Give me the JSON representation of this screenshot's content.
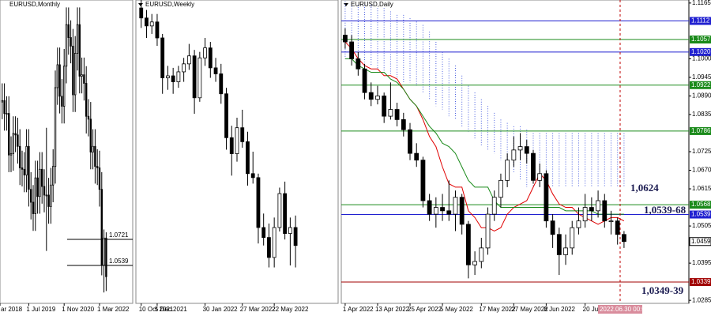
{
  "chart_data": [
    {
      "type": "candlestick",
      "title": "EURUSD,Monthly",
      "ylim": [
        1.0274,
        1.2392
      ],
      "xlim": [
        -1,
        59
      ],
      "xticks": [
        {
          "value": -1,
          "label": "ar 2018"
        },
        {
          "value": 12,
          "label": "1 Jul 2019"
        },
        {
          "value": 28,
          "label": "1 Nov 2020"
        },
        {
          "value": 44,
          "label": "1 Mar 2022"
        }
      ],
      "levels": [
        {
          "value": 1.0721,
          "label": "1.0721",
          "color": "#000000"
        },
        {
          "value": 1.0539,
          "label": "1.0539",
          "color": "#000000"
        }
      ],
      "candles": [
        [
          1.168,
          1.181,
          1.156,
          1.169
        ],
        [
          1.169,
          1.181,
          1.148,
          1.16
        ],
        [
          1.16,
          1.172,
          1.148,
          1.16
        ],
        [
          1.16,
          1.172,
          1.119,
          1.131
        ],
        [
          1.131,
          1.144,
          1.119,
          1.132
        ],
        [
          1.132,
          1.158,
          1.12,
          1.146
        ],
        [
          1.146,
          1.158,
          1.133,
          1.145
        ],
        [
          1.145,
          1.157,
          1.125,
          1.137
        ],
        [
          1.137,
          1.149,
          1.11,
          1.122
        ],
        [
          1.122,
          1.134,
          1.109,
          1.121
        ],
        [
          1.121,
          1.133,
          1.105,
          1.117
        ],
        [
          1.117,
          1.149,
          1.105,
          1.137
        ],
        [
          1.137,
          1.149,
          1.095,
          1.107
        ],
        [
          1.107,
          1.119,
          1.086,
          1.098
        ],
        [
          1.098,
          1.11,
          1.078,
          1.09
        ],
        [
          1.09,
          1.127,
          1.078,
          1.115
        ],
        [
          1.115,
          1.127,
          1.09,
          1.102
        ],
        [
          1.102,
          1.133,
          1.09,
          1.121
        ],
        [
          1.121,
          1.133,
          1.097,
          1.109
        ],
        [
          1.109,
          1.121,
          1.091,
          1.103
        ],
        [
          1.103,
          1.15,
          1.064,
          1.103
        ],
        [
          1.103,
          1.115,
          1.083,
          1.095
        ],
        [
          1.095,
          1.122,
          1.083,
          1.11
        ],
        [
          1.11,
          1.135,
          1.098,
          1.123
        ],
        [
          1.123,
          1.19,
          1.111,
          1.178
        ],
        [
          1.178,
          1.206,
          1.166,
          1.194
        ],
        [
          1.194,
          1.206,
          1.16,
          1.172
        ],
        [
          1.172,
          1.184,
          1.153,
          1.165
        ],
        [
          1.165,
          1.205,
          1.153,
          1.193
        ],
        [
          1.193,
          1.234,
          1.181,
          1.222
        ],
        [
          1.222,
          1.234,
          1.201,
          1.213
        ],
        [
          1.213,
          1.225,
          1.195,
          1.207
        ],
        [
          1.207,
          1.219,
          1.161,
          1.173
        ],
        [
          1.173,
          1.214,
          1.161,
          1.202
        ],
        [
          1.202,
          1.234,
          1.19,
          1.222
        ],
        [
          1.222,
          1.234,
          1.174,
          1.186
        ],
        [
          1.186,
          1.199,
          1.174,
          1.187
        ],
        [
          1.187,
          1.199,
          1.169,
          1.181
        ],
        [
          1.181,
          1.193,
          1.146,
          1.158
        ],
        [
          1.158,
          1.17,
          1.144,
          1.156
        ],
        [
          1.156,
          1.168,
          1.121,
          1.133
        ],
        [
          1.133,
          1.149,
          1.121,
          1.137
        ],
        [
          1.137,
          1.149,
          1.111,
          1.123
        ],
        [
          1.123,
          1.135,
          1.11,
          1.122
        ],
        [
          1.122,
          1.134,
          1.095,
          1.107
        ],
        [
          1.107,
          1.119,
          1.047,
          1.054
        ],
        [
          1.054,
          1.079,
          1.035,
          1.073
        ],
        [
          1.073,
          1.077,
          1.036,
          1.046
        ]
      ]
    },
    {
      "type": "candlestick",
      "title": "EURUSD,Weekly",
      "ylim": [
        1.017,
        1.169
      ],
      "xlim": [
        -1,
        37
      ],
      "xticks": [
        {
          "value": 0,
          "label": "10 Oct 2021"
        },
        {
          "value": 3,
          "label": "5 Dec 2021"
        },
        {
          "value": 12,
          "label": "30 Jan 2022"
        },
        {
          "value": 19,
          "label": "27 Mar 2022"
        },
        {
          "value": 25,
          "label": "22 May 2022"
        }
      ],
      "candles": [
        [
          1.165,
          1.17,
          1.155,
          1.16
        ],
        [
          1.16,
          1.164,
          1.15,
          1.156
        ],
        [
          1.156,
          1.162,
          1.152,
          1.158
        ],
        [
          1.158,
          1.162,
          1.146,
          1.15
        ],
        [
          1.15,
          1.152,
          1.122,
          1.13
        ],
        [
          1.13,
          1.136,
          1.124,
          1.131
        ],
        [
          1.131,
          1.135,
          1.122,
          1.128
        ],
        [
          1.128,
          1.136,
          1.125,
          1.133
        ],
        [
          1.133,
          1.14,
          1.128,
          1.137
        ],
        [
          1.137,
          1.147,
          1.134,
          1.141
        ],
        [
          1.141,
          1.144,
          1.112,
          1.12
        ],
        [
          1.12,
          1.143,
          1.118,
          1.14
        ],
        [
          1.14,
          1.15,
          1.136,
          1.145
        ],
        [
          1.145,
          1.148,
          1.13,
          1.135
        ],
        [
          1.135,
          1.14,
          1.128,
          1.132
        ],
        [
          1.132,
          1.137,
          1.117,
          1.122
        ],
        [
          1.122,
          1.125,
          1.094,
          1.1
        ],
        [
          1.1,
          1.106,
          1.081,
          1.092
        ],
        [
          1.092,
          1.11,
          1.088,
          1.105
        ],
        [
          1.105,
          1.114,
          1.095,
          1.098
        ],
        [
          1.098,
          1.103,
          1.076,
          1.082
        ],
        [
          1.082,
          1.093,
          1.077,
          1.08
        ],
        [
          1.08,
          1.082,
          1.047,
          1.055
        ],
        [
          1.055,
          1.062,
          1.046,
          1.05
        ],
        [
          1.05,
          1.057,
          1.035,
          1.04
        ],
        [
          1.04,
          1.06,
          1.035,
          1.055
        ],
        [
          1.055,
          1.075,
          1.053,
          1.072
        ],
        [
          1.072,
          1.078,
          1.049,
          1.052
        ],
        [
          1.052,
          1.06,
          1.036,
          1.055
        ],
        [
          1.055,
          1.061,
          1.035,
          1.046
        ]
      ]
    },
    {
      "type": "candlestick",
      "title": "EURUSD,Daily",
      "ylim": [
        1.0276,
        1.1174
      ],
      "xlim": [
        -0.6,
        53
      ],
      "yticks": [
        1.1165,
        {
          "value": 1.1,
          "label": "1.1000"
        },
        1.0945,
        {
          "value": 1.089,
          "label": "1.0890"
        },
        1.0835,
        1.0725,
        {
          "value": 1.067,
          "label": "1.0670"
        },
        1.0615,
        1.0505,
        1.0395,
        1.0285
      ],
      "xticks": [
        {
          "value": 0,
          "label": "1 Apr 2022"
        },
        {
          "value": 5,
          "label": "13 Apr 2022"
        },
        {
          "value": 10,
          "label": "25 Apr 2022"
        },
        {
          "value": 15,
          "label": "5 May 2022"
        },
        {
          "value": 21,
          "label": "17 May 2022"
        },
        {
          "value": 26,
          "label": "27 May 2022"
        },
        {
          "value": 31,
          "label": "8 Jun 2022"
        },
        {
          "value": 37,
          "label": "20 Jun 2022"
        }
      ],
      "cursor": {
        "value": 42.4,
        "label": "2022.06.30 00:00"
      },
      "levels": [
        {
          "value": 1.1112,
          "label": "1.1112",
          "color": "#2020d0"
        },
        {
          "value": 1.1057,
          "label": "1.1057",
          "color": "#1a8a1a"
        },
        {
          "value": 1.102,
          "label": "1.1020",
          "color": "#2020d0"
        },
        {
          "value": 1.0922,
          "label": "1.0922",
          "color": "#1a8a1a"
        },
        {
          "value": 1.0786,
          "label": "1.0786",
          "color": "#1a8a1a"
        },
        {
          "value": 1.0568,
          "label": "1.0568",
          "color": "#1a8a1a"
        },
        {
          "value": 1.0539,
          "label": "1.0539",
          "color": "#2020d0"
        },
        {
          "value": 1.0339,
          "label": "1.0339",
          "color": "#a00000"
        }
      ],
      "price": {
        "value": 1.0459,
        "label": "1.0459"
      },
      "annotations": [
        "1,0624",
        "1,0539-68",
        "1,0349-39"
      ],
      "cloud": {
        "color": "#4a5fe0",
        "upper": [
          1.117,
          1.117,
          1.116,
          1.116,
          1.116,
          1.115,
          1.115,
          1.114,
          1.113,
          1.113,
          1.112,
          1.111,
          1.11,
          1.108,
          1.105,
          1.102,
          1.1,
          1.098,
          1.095,
          1.092,
          1.09,
          1.088,
          1.086,
          1.084,
          1.082,
          1.081,
          1.08,
          1.08,
          1.079,
          1.078,
          1.078,
          1.078,
          1.078,
          1.078,
          1.078,
          1.078,
          1.078,
          1.078,
          1.078,
          1.078,
          1.078,
          1.078,
          1.078,
          1.078
        ],
        "lower": [
          1.1,
          1.1,
          1.099,
          1.099,
          1.098,
          1.097,
          1.096,
          1.095,
          1.094,
          1.093,
          1.093,
          1.092,
          1.09,
          1.088,
          1.086,
          1.085,
          1.083,
          1.082,
          1.08,
          1.078,
          1.076,
          1.074,
          1.073,
          1.072,
          1.07,
          1.068,
          1.066,
          1.064,
          1.062,
          1.062,
          1.062,
          1.062,
          1.062,
          1.062,
          1.062,
          1.062,
          1.062,
          1.062,
          1.062,
          1.062,
          1.062,
          1.062,
          1.062,
          1.062
        ]
      },
      "lines": [
        {
          "color": "#e00000",
          "values": [
            1.105,
            1.103,
            1.1,
            1.098,
            1.097,
            1.097,
            1.095,
            1.095,
            1.094,
            1.091,
            1.088,
            1.086,
            1.082,
            1.077,
            1.074,
            1.068,
            1.063,
            1.062,
            1.062,
            1.055,
            1.053,
            1.05,
            1.05,
            1.049,
            1.05,
            1.054,
            1.056,
            1.057,
            1.058,
            1.062,
            1.066,
            1.064,
            1.06,
            1.057,
            1.056,
            1.056,
            1.054,
            1.053,
            1.052,
            1.051,
            1.052,
            1.053,
            1.053,
            1.052
          ]
        },
        {
          "color": "#1a8a1a",
          "values": [
            1.1,
            1.1,
            1.098,
            1.097,
            1.096,
            1.096,
            1.096,
            1.094,
            1.093,
            1.091,
            1.088,
            1.086,
            1.083,
            1.08,
            1.078,
            1.075,
            1.074,
            1.072,
            1.068,
            1.064,
            1.062,
            1.062,
            1.062,
            1.058,
            1.056,
            1.056,
            1.056,
            1.056,
            1.056,
            1.056,
            1.056,
            1.056,
            1.056,
            1.056,
            1.055,
            1.055,
            1.055,
            1.055,
            1.055,
            1.054,
            1.054,
            1.054,
            1.054,
            1.054
          ]
        }
      ],
      "candles": [
        [
          1.107,
          1.109,
          1.103,
          1.105
        ],
        [
          1.105,
          1.107,
          1.098,
          1.1
        ],
        [
          1.1,
          1.102,
          1.095,
          1.097
        ],
        [
          1.097,
          1.0985,
          1.088,
          1.09
        ],
        [
          1.09,
          1.093,
          1.086,
          1.088
        ],
        [
          1.088,
          1.092,
          1.0865,
          1.089
        ],
        [
          1.089,
          1.09,
          1.081,
          1.083
        ],
        [
          1.083,
          1.093,
          1.082,
          1.085
        ],
        [
          1.085,
          1.087,
          1.08,
          1.082
        ],
        [
          1.082,
          1.084,
          1.077,
          1.079
        ],
        [
          1.079,
          1.081,
          1.07,
          1.072
        ],
        [
          1.072,
          1.075,
          1.068,
          1.07
        ],
        [
          1.07,
          1.071,
          1.056,
          1.058
        ],
        [
          1.058,
          1.06,
          1.052,
          1.054
        ],
        [
          1.054,
          1.059,
          1.05,
          1.056
        ],
        [
          1.056,
          1.06,
          1.052,
          1.055
        ],
        [
          1.055,
          1.064,
          1.052,
          1.054
        ],
        [
          1.054,
          1.061,
          1.049,
          1.059
        ],
        [
          1.059,
          1.06,
          1.048,
          1.051
        ],
        [
          1.051,
          1.052,
          1.035,
          1.039
        ],
        [
          1.039,
          1.043,
          1.036,
          1.04
        ],
        [
          1.04,
          1.047,
          1.038,
          1.044
        ],
        [
          1.044,
          1.056,
          1.042,
          1.054
        ],
        [
          1.054,
          1.061,
          1.052,
          1.059
        ],
        [
          1.059,
          1.066,
          1.056,
          1.064
        ],
        [
          1.064,
          1.072,
          1.062,
          1.07
        ],
        [
          1.07,
          1.077,
          1.068,
          1.073
        ],
        [
          1.073,
          1.078,
          1.07,
          1.074
        ],
        [
          1.074,
          1.076,
          1.069,
          1.072
        ],
        [
          1.072,
          1.073,
          1.063,
          1.064
        ],
        [
          1.064,
          1.069,
          1.062,
          1.066
        ],
        [
          1.066,
          1.067,
          1.05,
          1.052
        ],
        [
          1.052,
          1.054,
          1.044,
          1.048
        ],
        [
          1.048,
          1.05,
          1.036,
          1.042
        ],
        [
          1.042,
          1.048,
          1.039,
          1.044
        ],
        [
          1.044,
          1.052,
          1.042,
          1.05
        ],
        [
          1.05,
          1.056,
          1.048,
          1.052
        ],
        [
          1.052,
          1.06,
          1.05,
          1.056
        ],
        [
          1.056,
          1.059,
          1.052,
          1.055
        ],
        [
          1.055,
          1.061,
          1.053,
          1.058
        ],
        [
          1.058,
          1.06,
          1.05,
          1.052
        ],
        [
          1.052,
          1.055,
          1.048,
          1.052
        ],
        [
          1.052,
          1.053,
          1.045,
          1.048
        ],
        [
          1.048,
          1.049,
          1.044,
          1.0459
        ]
      ]
    }
  ]
}
